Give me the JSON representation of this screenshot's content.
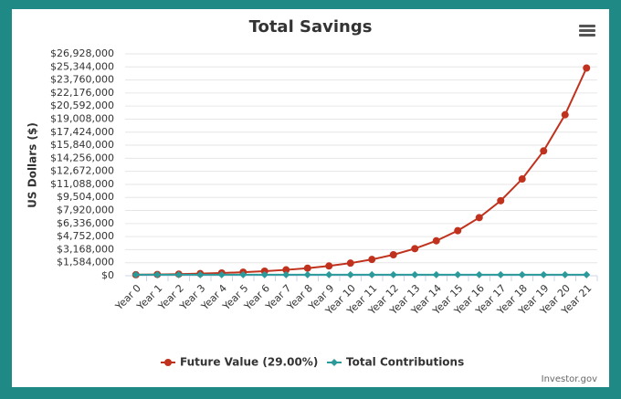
{
  "chart_data": {
    "type": "line",
    "title": "Total Savings",
    "y_label": "US Dollars ($)",
    "credit": "Investor.gov",
    "legend": "bottom",
    "grid": true,
    "categories": [
      "Year 0",
      "Year 1",
      "Year 2",
      "Year 3",
      "Year 4",
      "Year 5",
      "Year 6",
      "Year 7",
      "Year 8",
      "Year 9",
      "Year 10",
      "Year 11",
      "Year 12",
      "Year 13",
      "Year 14",
      "Year 15",
      "Year 16",
      "Year 17",
      "Year 18",
      "Year 19",
      "Year 20",
      "Year 21"
    ],
    "series": [
      {
        "name": "Future Value (29.00%)",
        "color": "#c0321d",
        "marker": "circle",
        "values": [
          120000,
          154800,
          199700,
          257600,
          332300,
          428700,
          553000,
          713400,
          920200,
          1187100,
          1531400,
          1975500,
          2548300,
          3287400,
          4240700,
          5470500,
          7057000,
          9103400,
          11743400,
          15148900,
          19542000,
          25209300
        ]
      },
      {
        "name": "Total Contributions",
        "color": "#2a9a9a",
        "marker": "diamond",
        "values": [
          120000,
          120000,
          120000,
          120000,
          120000,
          120000,
          120000,
          120000,
          120000,
          120000,
          120000,
          120000,
          120000,
          120000,
          120000,
          120000,
          120000,
          120000,
          120000,
          120000,
          120000,
          120000
        ]
      }
    ],
    "ylim": [
      0,
      26928000
    ],
    "yticks": [
      {
        "value": 0,
        "label": "$0"
      },
      {
        "value": 1584000,
        "label": "$1,584,000"
      },
      {
        "value": 3168000,
        "label": "$3,168,000"
      },
      {
        "value": 4752000,
        "label": "$4,752,000"
      },
      {
        "value": 6336000,
        "label": "$6,336,000"
      },
      {
        "value": 7920000,
        "label": "$7,920,000"
      },
      {
        "value": 9504000,
        "label": "$9,504,000"
      },
      {
        "value": 11088000,
        "label": "$11,088,000"
      },
      {
        "value": 12672000,
        "label": "$12,672,000"
      },
      {
        "value": 14256000,
        "label": "$14,256,000"
      },
      {
        "value": 15840000,
        "label": "$15,840,000"
      },
      {
        "value": 17424000,
        "label": "$17,424,000"
      },
      {
        "value": 19008000,
        "label": "$19,008,000"
      },
      {
        "value": 20592000,
        "label": "$20,592,000"
      },
      {
        "value": 22176000,
        "label": "$22,176,000"
      },
      {
        "value": 23760000,
        "label": "$23,760,000"
      },
      {
        "value": 25344000,
        "label": "$25,344,000"
      },
      {
        "value": 26928000,
        "label": "$26,928,000"
      }
    ]
  }
}
